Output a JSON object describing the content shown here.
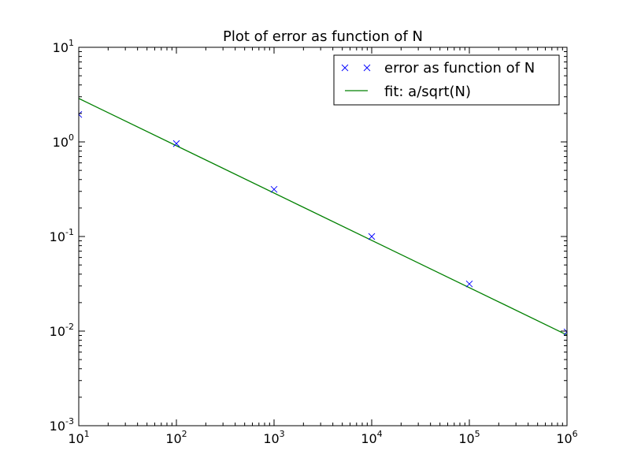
{
  "chart_data": {
    "type": "line",
    "title": "Plot of error as function of N",
    "xlabel": "",
    "ylabel": "",
    "xscale": "log",
    "yscale": "log",
    "xlim": [
      10,
      1000000
    ],
    "ylim": [
      0.001,
      10
    ],
    "x_ticks": [
      {
        "base": "10",
        "exp": "1",
        "value": 10
      },
      {
        "base": "10",
        "exp": "2",
        "value": 100
      },
      {
        "base": "10",
        "exp": "3",
        "value": 1000
      },
      {
        "base": "10",
        "exp": "4",
        "value": 10000
      },
      {
        "base": "10",
        "exp": "5",
        "value": 100000
      },
      {
        "base": "10",
        "exp": "6",
        "value": 1000000
      }
    ],
    "y_ticks": [
      {
        "base": "10",
        "exp": "1",
        "value": 10
      },
      {
        "base": "10",
        "exp": "0",
        "value": 1
      },
      {
        "base": "10",
        "exp": "-1",
        "value": 0.1
      },
      {
        "base": "10",
        "exp": "-2",
        "value": 0.01
      },
      {
        "base": "10",
        "exp": "-3",
        "value": 0.001
      }
    ],
    "grid": false,
    "legend": {
      "placement": "top-right"
    },
    "series": [
      {
        "name": "error as function of N",
        "kind": "scatter",
        "marker": "x",
        "color": "#0000ff",
        "x": [
          10,
          100,
          1000,
          10000,
          100000,
          1000000
        ],
        "y": [
          1.95,
          0.96,
          0.315,
          0.1,
          0.0315,
          0.0098
        ]
      },
      {
        "name": "fit: a/sqrt(N)",
        "kind": "line",
        "color": "#008000",
        "a": 9.1,
        "x": [
          10,
          1000000
        ],
        "y": [
          2.88,
          0.0091
        ]
      }
    ]
  }
}
